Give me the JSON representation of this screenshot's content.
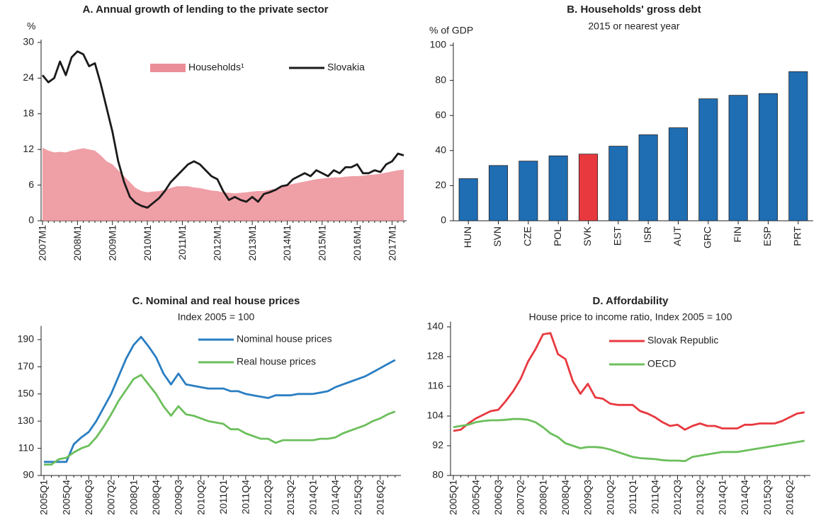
{
  "chart_data": [
    {
      "type": "line",
      "title": "A. Annual growth of lending to the private sector",
      "y_label": "%",
      "categories": [
        "2007M1",
        null,
        null,
        null,
        null,
        null,
        "2008M1",
        null,
        null,
        null,
        null,
        null,
        "2009M1",
        null,
        null,
        null,
        null,
        null,
        "2010M1",
        null,
        null,
        null,
        null,
        null,
        "2011M1",
        null,
        null,
        null,
        null,
        null,
        "2012M1",
        null,
        null,
        null,
        null,
        null,
        "2013M1",
        null,
        null,
        null,
        null,
        null,
        "2014M1",
        null,
        null,
        null,
        null,
        null,
        "2015M1",
        null,
        null,
        null,
        null,
        null,
        "2016M1",
        null,
        null,
        null,
        null,
        null,
        "2017M1",
        null,
        null
      ],
      "series": [
        {
          "name": "Households¹",
          "kind": "area",
          "color": "#ec8e97",
          "values": [
            12.3,
            11.8,
            11.5,
            11.6,
            11.5,
            11.8,
            12.0,
            12.2,
            12.0,
            11.8,
            11.0,
            10.0,
            9.5,
            8.5,
            7.5,
            6.5,
            5.5,
            5.0,
            4.8,
            4.9,
            5.0,
            5.2,
            5.5,
            5.8,
            5.8,
            5.8,
            5.6,
            5.5,
            5.3,
            5.1,
            5.0,
            4.8,
            4.7,
            4.6,
            4.7,
            4.8,
            4.9,
            5.0,
            5.0,
            5.2,
            5.4,
            5.7,
            6.0,
            6.2,
            6.4,
            6.6,
            6.8,
            7.0,
            7.1,
            7.2,
            7.3,
            7.3,
            7.4,
            7.5,
            7.5,
            7.6,
            7.7,
            7.8,
            7.9,
            8.1,
            8.3,
            8.5,
            8.6
          ]
        },
        {
          "name": "Slovakia",
          "kind": "line",
          "color": "#1a1a1a",
          "values": [
            24.5,
            23.3,
            24.0,
            26.8,
            24.5,
            27.5,
            28.5,
            28.0,
            26.0,
            26.5,
            23.0,
            19.0,
            15.0,
            10.0,
            6.5,
            4.0,
            3.0,
            2.5,
            2.2,
            3.0,
            3.8,
            5.0,
            6.5,
            7.5,
            8.5,
            9.5,
            10.0,
            9.5,
            8.5,
            7.5,
            7.0,
            5.0,
            3.5,
            4.0,
            3.5,
            3.2,
            4.0,
            3.2,
            4.5,
            4.8,
            5.2,
            5.8,
            6.0,
            7.0,
            7.5,
            8.0,
            7.5,
            8.5,
            8.0,
            7.5,
            8.5,
            8.0,
            9.0,
            9.0,
            9.5,
            8.0,
            8.0,
            8.5,
            8.2,
            9.5,
            10.0,
            11.3,
            11.0
          ]
        }
      ],
      "ylim": [
        0,
        30
      ],
      "yticks": [
        0,
        6,
        12,
        18,
        24,
        30
      ],
      "grid": false
    },
    {
      "type": "bar",
      "title": "B. Households' gross debt",
      "subtitle": "2015 or nearest year",
      "y_label": "% of GDP",
      "categories": [
        "HUN",
        "SVN",
        "CZE",
        "POL",
        "SVK",
        "EST",
        "ISR",
        "AUT",
        "GRC",
        "FIN",
        "ESP",
        "PRT"
      ],
      "values": [
        24,
        31.5,
        34,
        37,
        38,
        42.5,
        49,
        53,
        69.5,
        71.5,
        72.5,
        85
      ],
      "colors": [
        "#1f6db3",
        "#1f6db3",
        "#1f6db3",
        "#1f6db3",
        "#e8393f",
        "#1f6db3",
        "#1f6db3",
        "#1f6db3",
        "#1f6db3",
        "#1f6db3",
        "#1f6db3",
        "#1f6db3"
      ],
      "ylim": [
        0,
        100
      ],
      "yticks": [
        0,
        20,
        40,
        60,
        80,
        100
      ],
      "grid": false
    },
    {
      "type": "line",
      "title": "C. Nominal and real house prices",
      "subtitle": "Index 2005 = 100",
      "categories": [
        "2005Q1",
        null,
        null,
        "2005Q4",
        null,
        null,
        "2006Q3",
        null,
        null,
        "2007Q2",
        null,
        null,
        "2008Q1",
        null,
        null,
        "2008Q4",
        null,
        null,
        "2009Q3",
        null,
        null,
        "2010Q2",
        null,
        null,
        "2011Q1",
        null,
        null,
        "2011Q4",
        null,
        null,
        "2012Q3",
        null,
        null,
        "2013Q2",
        null,
        null,
        "2014Q1",
        null,
        null,
        "2014Q4",
        null,
        null,
        "2015Q3",
        null,
        null,
        "2016Q2",
        null,
        null
      ],
      "series": [
        {
          "name": "Nominal house prices",
          "kind": "line",
          "color": "#2a7ec2",
          "values": [
            100,
            100,
            100,
            100,
            113,
            118,
            122,
            130,
            140,
            150,
            163,
            176,
            186,
            192,
            185,
            177,
            165,
            157,
            165,
            157,
            156,
            155,
            154,
            154,
            154,
            152,
            152,
            150,
            149,
            148,
            147,
            149,
            149,
            149,
            150,
            150,
            150,
            151,
            152,
            155,
            157,
            159,
            161,
            163,
            166,
            169,
            172,
            175
          ]
        },
        {
          "name": "Real house prices",
          "kind": "line",
          "color": "#6cbf5c",
          "values": [
            98,
            98,
            102,
            103,
            107,
            110,
            112,
            118,
            126,
            135,
            145,
            153,
            161,
            164,
            157,
            150,
            141,
            134,
            141,
            135,
            134,
            132,
            130,
            129,
            128,
            124,
            124,
            121,
            119,
            117,
            117,
            114,
            116,
            116,
            116,
            116,
            116,
            117,
            117,
            118,
            121,
            123,
            125,
            127,
            130,
            132,
            135,
            137
          ]
        }
      ],
      "ylim": [
        90,
        198
      ],
      "yticks": [
        90,
        110,
        130,
        150,
        170,
        190
      ],
      "grid": false
    },
    {
      "type": "line",
      "title": "D. Affordability",
      "subtitle": "House price to income ratio, Index 2005 = 100",
      "categories": [
        "2005Q1",
        null,
        null,
        "2005Q4",
        null,
        null,
        "2006Q3",
        null,
        null,
        "2007Q2",
        null,
        null,
        "2008Q1",
        null,
        null,
        "2008Q4",
        null,
        null,
        "2009Q3",
        null,
        null,
        "2010Q2",
        null,
        null,
        "2011Q1",
        null,
        null,
        "2011Q4",
        null,
        null,
        "2012Q3",
        null,
        null,
        "2013Q2",
        null,
        null,
        "2014Q1",
        null,
        null,
        "2014Q4",
        null,
        null,
        "2015Q3",
        null,
        null,
        "2016Q2",
        null,
        null
      ],
      "series": [
        {
          "name": "Slovak Republic",
          "kind": "line",
          "color": "#e8393f",
          "values": [
            98,
            98.5,
            101,
            103,
            104.5,
            106,
            106.5,
            110,
            114,
            119,
            126,
            131,
            137,
            137.5,
            129,
            127,
            118,
            113,
            117,
            111.5,
            111,
            109,
            108.5,
            108.5,
            108.5,
            106,
            105,
            103.5,
            101.5,
            100,
            100.5,
            98.5,
            100,
            101,
            100,
            100,
            99,
            99,
            99,
            100.5,
            100.5,
            101,
            101,
            101,
            102,
            103.5,
            105,
            105.5
          ]
        },
        {
          "name": "OECD",
          "kind": "line",
          "color": "#6cbf5c",
          "values": [
            99.5,
            100,
            100.5,
            101.5,
            102,
            102.3,
            102.3,
            102.5,
            102.8,
            102.8,
            102.5,
            101.5,
            99.5,
            97,
            95.5,
            93,
            92,
            91,
            91.5,
            91.5,
            91.2,
            90.5,
            89.5,
            88.5,
            87.5,
            87,
            86.8,
            86.6,
            86.2,
            86,
            86,
            85.8,
            87.5,
            88,
            88.5,
            89,
            89.5,
            89.5,
            89.5,
            90,
            90.5,
            91,
            91.5,
            92,
            92.5,
            93,
            93.5,
            94
          ]
        }
      ],
      "ylim": [
        80,
        141
      ],
      "yticks": [
        80,
        92,
        104,
        116,
        128,
        140
      ],
      "grid": false
    }
  ]
}
